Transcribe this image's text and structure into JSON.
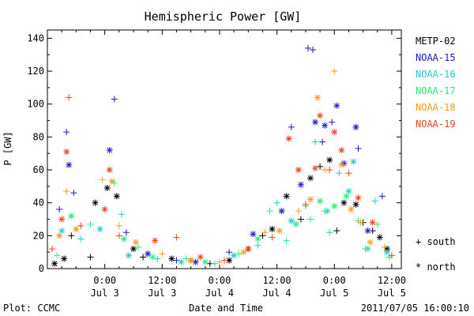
{
  "chart_data": {
    "type": "scatter",
    "title": "Hemispheric Power [GW]",
    "ylabel": "P [GW]",
    "xlabel": "Date and Time",
    "ylim": [
      0,
      145
    ],
    "yticks": [
      0,
      20,
      40,
      60,
      80,
      100,
      120,
      140
    ],
    "x_unit": "hours since 2011-07-02 12:00 UT",
    "xlim": [
      0,
      66
    ],
    "xticks": [
      {
        "x": 12,
        "time": "0:00",
        "date": "Jul 3"
      },
      {
        "x": 24,
        "time": "12:00",
        "date": "Jul 3"
      },
      {
        "x": 36,
        "time": "0:00",
        "date": "Jul 4"
      },
      {
        "x": 48,
        "time": "12:00",
        "date": "Jul 4"
      },
      {
        "x": 60,
        "time": "0:00",
        "date": "Jul 5"
      },
      {
        "x": 72,
        "time": "12:00",
        "date": "Jul 5"
      }
    ],
    "legend_markers": [
      {
        "marker": "+",
        "label": "south"
      },
      {
        "marker": "*",
        "label": "north"
      }
    ],
    "series": [
      {
        "name": "METP-02",
        "color": "#000000",
        "points": [
          {
            "x": 1.5,
            "y": 3,
            "m": "*"
          },
          {
            "x": 3.5,
            "y": 6,
            "m": "*"
          },
          {
            "x": 5,
            "y": 20,
            "m": "+"
          },
          {
            "x": 10,
            "y": 40,
            "m": "*"
          },
          {
            "x": 12.5,
            "y": 49,
            "m": "*"
          },
          {
            "x": 14.5,
            "y": 44,
            "m": "*"
          },
          {
            "x": 9,
            "y": 7,
            "m": "+"
          },
          {
            "x": 18,
            "y": 12,
            "m": "*"
          },
          {
            "x": 20,
            "y": 7,
            "m": "+"
          },
          {
            "x": 26,
            "y": 6,
            "m": "*"
          },
          {
            "x": 30,
            "y": 5,
            "m": "*"
          },
          {
            "x": 34,
            "y": 3,
            "m": "+"
          },
          {
            "x": 38,
            "y": 5,
            "m": "*"
          },
          {
            "x": 42,
            "y": 12,
            "m": "*"
          },
          {
            "x": 45,
            "y": 20,
            "m": "+"
          },
          {
            "x": 47,
            "y": 24,
            "m": "*"
          },
          {
            "x": 50,
            "y": 44,
            "m": "*"
          },
          {
            "x": 53,
            "y": 30,
            "m": "+"
          },
          {
            "x": 55,
            "y": 55,
            "m": "*"
          },
          {
            "x": 57,
            "y": 62,
            "m": "+"
          },
          {
            "x": 59,
            "y": 66,
            "m": "*"
          },
          {
            "x": 60.5,
            "y": 23,
            "m": "+"
          },
          {
            "x": 62,
            "y": 40,
            "m": "*"
          },
          {
            "x": 64.5,
            "y": 39,
            "m": "*"
          },
          {
            "x": 66,
            "y": 28,
            "m": "+"
          },
          {
            "x": 68,
            "y": 23,
            "m": "+"
          },
          {
            "x": 69.5,
            "y": 19,
            "m": "*"
          },
          {
            "x": 71,
            "y": 12,
            "m": "*"
          }
        ]
      },
      {
        "name": "NOAA-15",
        "color": "#1a1acc",
        "points": [
          {
            "x": 2.5,
            "y": 36,
            "m": "+"
          },
          {
            "x": 4,
            "y": 83,
            "m": "+"
          },
          {
            "x": 4.5,
            "y": 63,
            "m": "*"
          },
          {
            "x": 5.5,
            "y": 46,
            "m": "+"
          },
          {
            "x": 13,
            "y": 72,
            "m": "*"
          },
          {
            "x": 14,
            "y": 103,
            "m": "+"
          },
          {
            "x": 16.5,
            "y": 22,
            "m": "+"
          },
          {
            "x": 21,
            "y": 9,
            "m": "*"
          },
          {
            "x": 27,
            "y": 5,
            "m": "+"
          },
          {
            "x": 31,
            "y": 4,
            "m": "*"
          },
          {
            "x": 38,
            "y": 10,
            "m": "+"
          },
          {
            "x": 43,
            "y": 21,
            "m": "*"
          },
          {
            "x": 49,
            "y": 35,
            "m": "*"
          },
          {
            "x": 51,
            "y": 86,
            "m": "+"
          },
          {
            "x": 53,
            "y": 51,
            "m": "*"
          },
          {
            "x": 54.5,
            "y": 134,
            "m": "+"
          },
          {
            "x": 55.5,
            "y": 133,
            "m": "+"
          },
          {
            "x": 56,
            "y": 89,
            "m": "*"
          },
          {
            "x": 57.5,
            "y": 77,
            "m": "+"
          },
          {
            "x": 58,
            "y": 87,
            "m": "*"
          },
          {
            "x": 59.5,
            "y": 89,
            "m": "+"
          },
          {
            "x": 60.5,
            "y": 99,
            "m": "*"
          },
          {
            "x": 62,
            "y": 64,
            "m": "*"
          },
          {
            "x": 64.5,
            "y": 86,
            "m": "*"
          },
          {
            "x": 65,
            "y": 73,
            "m": "+"
          },
          {
            "x": 67,
            "y": 23,
            "m": "*"
          },
          {
            "x": 70,
            "y": 44,
            "m": "+"
          }
        ]
      },
      {
        "name": "NOAA-16",
        "color": "#22cccc",
        "points": [
          {
            "x": 3,
            "y": 23,
            "m": "*"
          },
          {
            "x": 7,
            "y": 18,
            "m": "+"
          },
          {
            "x": 11,
            "y": 24,
            "m": "*"
          },
          {
            "x": 15.5,
            "y": 33,
            "m": "+"
          },
          {
            "x": 17,
            "y": 8,
            "m": "*"
          },
          {
            "x": 23,
            "y": 6,
            "m": "+"
          },
          {
            "x": 28,
            "y": 4,
            "m": "*"
          },
          {
            "x": 35,
            "y": 3,
            "m": "+"
          },
          {
            "x": 39,
            "y": 8,
            "m": "*"
          },
          {
            "x": 44,
            "y": 14,
            "m": "+"
          },
          {
            "x": 48,
            "y": 40,
            "m": "+"
          },
          {
            "x": 51,
            "y": 29,
            "m": "*"
          },
          {
            "x": 54,
            "y": 38,
            "m": "+"
          },
          {
            "x": 56,
            "y": 77,
            "m": "+"
          },
          {
            "x": 58.5,
            "y": 35,
            "m": "*"
          },
          {
            "x": 59,
            "y": 22,
            "m": "+"
          },
          {
            "x": 61,
            "y": 58,
            "m": "+"
          },
          {
            "x": 63,
            "y": 47,
            "m": "*"
          },
          {
            "x": 64,
            "y": 65,
            "m": "*"
          },
          {
            "x": 66.5,
            "y": 12,
            "m": "+"
          },
          {
            "x": 68.5,
            "y": 41,
            "m": "+"
          },
          {
            "x": 71,
            "y": 10,
            "m": "*"
          }
        ]
      },
      {
        "name": "NOAA-17",
        "color": "#22ee77",
        "points": [
          {
            "x": 2,
            "y": 8,
            "m": "+"
          },
          {
            "x": 5,
            "y": 32,
            "m": "*"
          },
          {
            "x": 9,
            "y": 27,
            "m": "+"
          },
          {
            "x": 14,
            "y": 52,
            "m": "+"
          },
          {
            "x": 16,
            "y": 18,
            "m": "*"
          },
          {
            "x": 19,
            "y": 13,
            "m": "+"
          },
          {
            "x": 22,
            "y": 7,
            "m": "*"
          },
          {
            "x": 29,
            "y": 6,
            "m": "+"
          },
          {
            "x": 33,
            "y": 4,
            "m": "*"
          },
          {
            "x": 40,
            "y": 9,
            "m": "+"
          },
          {
            "x": 44,
            "y": 18,
            "m": "*"
          },
          {
            "x": 46.5,
            "y": 35,
            "m": "+"
          },
          {
            "x": 50,
            "y": 17,
            "m": "+"
          },
          {
            "x": 52,
            "y": 27,
            "m": "*"
          },
          {
            "x": 55,
            "y": 30,
            "m": "+"
          },
          {
            "x": 57,
            "y": 41,
            "m": "*"
          },
          {
            "x": 58,
            "y": 35,
            "m": "+"
          },
          {
            "x": 60,
            "y": 38,
            "m": "*"
          },
          {
            "x": 62.5,
            "y": 44,
            "m": "*"
          },
          {
            "x": 65,
            "y": 29,
            "m": "+"
          },
          {
            "x": 67,
            "y": 12,
            "m": "*"
          },
          {
            "x": 69,
            "y": 27,
            "m": "+"
          },
          {
            "x": 71.5,
            "y": 7,
            "m": "+"
          }
        ]
      },
      {
        "name": "NOAA-18",
        "color": "#ff9922",
        "points": [
          {
            "x": 2.5,
            "y": 20,
            "m": "*"
          },
          {
            "x": 4,
            "y": 47,
            "m": "+"
          },
          {
            "x": 6,
            "y": 24,
            "m": "*"
          },
          {
            "x": 11.5,
            "y": 54,
            "m": "+"
          },
          {
            "x": 13.5,
            "y": 53,
            "m": "*"
          },
          {
            "x": 15,
            "y": 26,
            "m": "+"
          },
          {
            "x": 18.5,
            "y": 16,
            "m": "*"
          },
          {
            "x": 24,
            "y": 9,
            "m": "+"
          },
          {
            "x": 30,
            "y": 5,
            "m": "*"
          },
          {
            "x": 36,
            "y": 4,
            "m": "+"
          },
          {
            "x": 41,
            "y": 10,
            "m": "*"
          },
          {
            "x": 45.5,
            "y": 22,
            "m": "+"
          },
          {
            "x": 48.5,
            "y": 23,
            "m": "*"
          },
          {
            "x": 52.5,
            "y": 35,
            "m": "+"
          },
          {
            "x": 55,
            "y": 42,
            "m": "*"
          },
          {
            "x": 56.5,
            "y": 104,
            "m": "*"
          },
          {
            "x": 58,
            "y": 60,
            "m": "+"
          },
          {
            "x": 60,
            "y": 120,
            "m": "+"
          },
          {
            "x": 61.5,
            "y": 63,
            "m": "*"
          },
          {
            "x": 63.5,
            "y": 36,
            "m": "*"
          },
          {
            "x": 65.5,
            "y": 28,
            "m": "+"
          },
          {
            "x": 67.5,
            "y": 16,
            "m": "*"
          },
          {
            "x": 70.5,
            "y": 13,
            "m": "+"
          }
        ]
      },
      {
        "name": "NOAA-19",
        "color": "#e8441c",
        "points": [
          {
            "x": 1,
            "y": 12,
            "m": "+"
          },
          {
            "x": 3,
            "y": 30,
            "m": "*"
          },
          {
            "x": 4,
            "y": 71,
            "m": "*"
          },
          {
            "x": 4.5,
            "y": 104,
            "m": "+"
          },
          {
            "x": 7,
            "y": 26,
            "m": "+"
          },
          {
            "x": 12,
            "y": 36,
            "m": "*"
          },
          {
            "x": 13,
            "y": 60,
            "m": "*"
          },
          {
            "x": 15,
            "y": 20,
            "m": "+"
          },
          {
            "x": 22.5,
            "y": 17,
            "m": "*"
          },
          {
            "x": 27,
            "y": 19,
            "m": "+"
          },
          {
            "x": 32,
            "y": 7,
            "m": "*"
          },
          {
            "x": 37,
            "y": 5,
            "m": "+"
          },
          {
            "x": 42,
            "y": 12,
            "m": "*"
          },
          {
            "x": 47,
            "y": 19,
            "m": "+"
          },
          {
            "x": 50.5,
            "y": 79,
            "m": "*"
          },
          {
            "x": 52.5,
            "y": 60,
            "m": "*"
          },
          {
            "x": 54,
            "y": 39,
            "m": "+"
          },
          {
            "x": 56,
            "y": 61,
            "m": "*"
          },
          {
            "x": 57,
            "y": 93,
            "m": "*"
          },
          {
            "x": 59,
            "y": 60,
            "m": "+"
          },
          {
            "x": 60,
            "y": 83,
            "m": "*"
          },
          {
            "x": 61.5,
            "y": 72,
            "m": "*"
          },
          {
            "x": 63,
            "y": 58,
            "m": "+"
          },
          {
            "x": 65,
            "y": 43,
            "m": "*"
          },
          {
            "x": 68,
            "y": 28,
            "m": "*"
          },
          {
            "x": 72,
            "y": 8,
            "m": "+"
          }
        ]
      }
    ]
  },
  "footer": {
    "plot_credit": "Plot: CCMC",
    "timestamp": "2011/07/05 16:00:10"
  }
}
